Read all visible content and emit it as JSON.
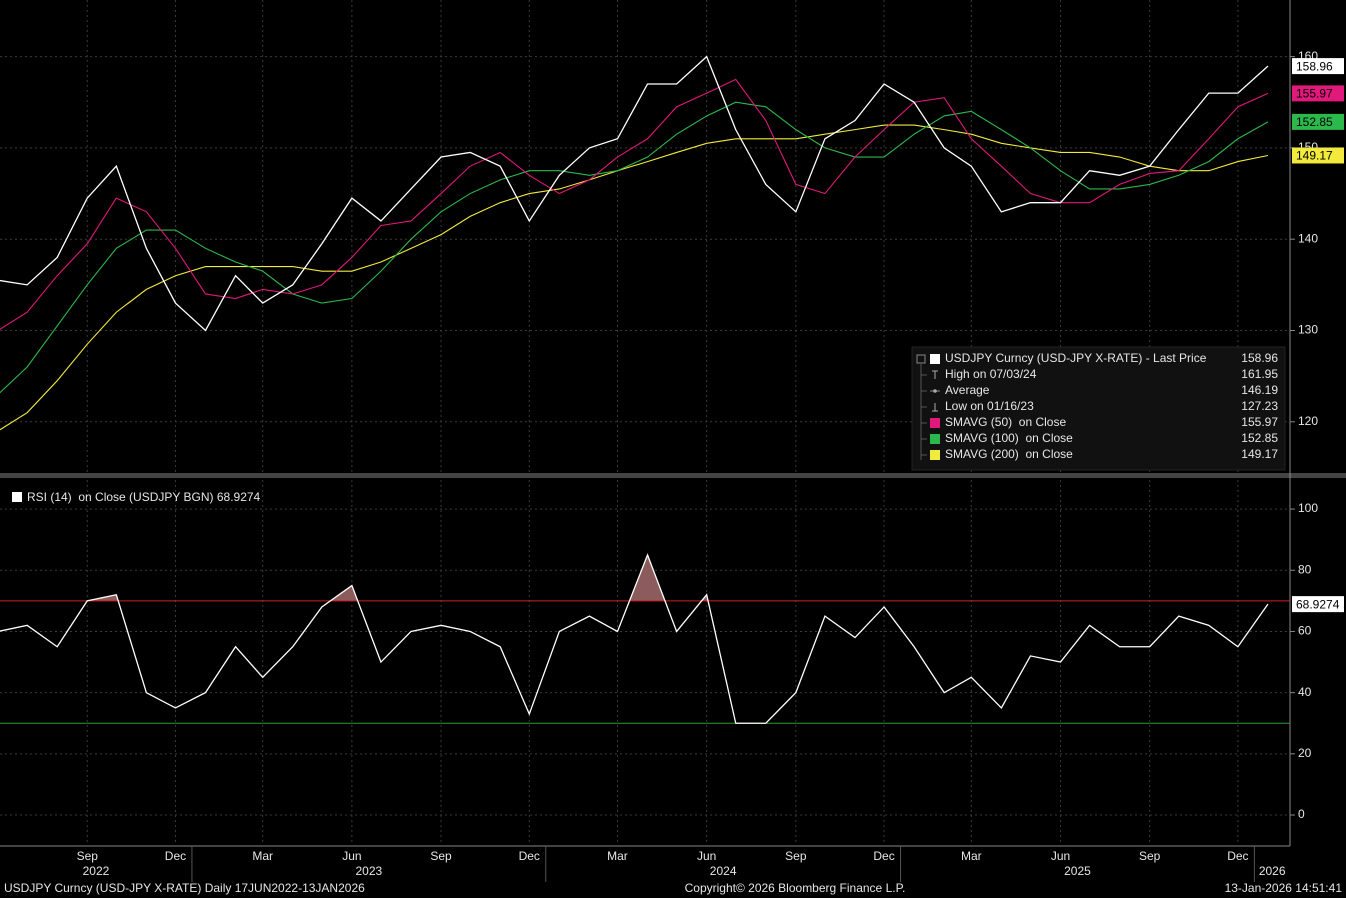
{
  "chart_data": [
    {
      "type": "line",
      "x": [
        "2022-06",
        "2022-07",
        "2022-08",
        "2022-09",
        "2022-10",
        "2022-11",
        "2022-12",
        "2023-01",
        "2023-02",
        "2023-03",
        "2023-04",
        "2023-05",
        "2023-06",
        "2023-07",
        "2023-08",
        "2023-09",
        "2023-10",
        "2023-11",
        "2023-12",
        "2024-01",
        "2024-02",
        "2024-03",
        "2024-04",
        "2024-05",
        "2024-06",
        "2024-07",
        "2024-08",
        "2024-09",
        "2024-10",
        "2024-11",
        "2024-12",
        "2025-01",
        "2025-02",
        "2025-03",
        "2025-04",
        "2025-05",
        "2025-06",
        "2025-07",
        "2025-08",
        "2025-09",
        "2025-10",
        "2025-11",
        "2025-12",
        "2026-01"
      ],
      "series": [
        {
          "name": "USDJPY Curncy (USD-JPY X-RATE) - Last Price",
          "color": "#ffffff",
          "values": [
            135.5,
            135,
            138,
            144.5,
            148,
            139,
            133,
            130,
            136,
            133,
            135,
            139.5,
            144.5,
            142,
            145.5,
            149,
            149.5,
            148,
            142,
            147,
            150,
            151,
            157,
            157,
            160,
            152,
            146,
            143,
            151,
            153,
            157,
            155,
            150,
            148,
            143,
            144,
            144,
            147.5,
            147,
            148,
            152,
            156,
            156,
            158.96
          ]
        },
        {
          "name": "SMAVG (50)  on Close",
          "color": "#e0197a",
          "values": [
            130,
            132,
            136,
            139.5,
            144.5,
            143,
            139,
            134,
            133.5,
            134.5,
            134,
            135,
            138,
            141.5,
            142,
            145,
            148,
            149.5,
            147,
            145,
            146.5,
            149,
            151,
            154.5,
            156,
            157.5,
            153,
            146,
            145,
            149,
            152,
            155,
            155.5,
            151,
            148,
            145,
            144,
            144,
            146,
            147.2,
            147.5,
            151,
            154.5,
            155.97
          ]
        },
        {
          "name": "SMAVG (100)  on Close",
          "color": "#2db84b",
          "values": [
            123,
            126,
            130.5,
            135,
            139,
            141,
            141,
            139,
            137.5,
            136.5,
            134,
            133,
            133.5,
            136.5,
            140,
            143,
            145,
            146.5,
            147.5,
            147.5,
            147,
            147.5,
            149,
            151.5,
            153.5,
            155,
            154.5,
            152,
            150,
            149,
            149,
            151.5,
            153.5,
            154,
            152,
            150,
            147.5,
            145.5,
            145.5,
            146,
            147,
            148.5,
            151,
            152.85
          ]
        },
        {
          "name": "SMAVG (200)  on Close",
          "color": "#f2ea3c",
          "values": [
            119,
            121,
            124.5,
            128.5,
            132,
            134.5,
            136,
            137,
            137,
            137,
            137,
            136.5,
            136.5,
            137.5,
            139,
            140.5,
            142.5,
            144,
            145,
            145.5,
            146.5,
            147.5,
            148.5,
            149.5,
            150.5,
            151,
            151,
            151,
            151.5,
            152,
            152.5,
            152.5,
            152,
            151.5,
            150.5,
            150,
            149.5,
            149.5,
            149,
            148,
            147.5,
            147.5,
            148.5,
            149.17
          ]
        }
      ],
      "stats": [
        {
          "label": "High on 07/03/24",
          "value": 161.95
        },
        {
          "label": "Average",
          "value": 146.19
        },
        {
          "label": "Low on 01/16/23",
          "value": 127.23
        }
      ],
      "ylim": [
        114.5,
        166.2
      ],
      "yticks": [
        120,
        130,
        140,
        150,
        160
      ],
      "grid": true
    },
    {
      "type": "line",
      "x": [
        "2022-06",
        "2022-07",
        "2022-08",
        "2022-09",
        "2022-10",
        "2022-11",
        "2022-12",
        "2023-01",
        "2023-02",
        "2023-03",
        "2023-04",
        "2023-05",
        "2023-06",
        "2023-07",
        "2023-08",
        "2023-09",
        "2023-10",
        "2023-11",
        "2023-12",
        "2024-01",
        "2024-02",
        "2024-03",
        "2024-04",
        "2024-05",
        "2024-06",
        "2024-07",
        "2024-08",
        "2024-09",
        "2024-10",
        "2024-11",
        "2024-12",
        "2025-01",
        "2025-02",
        "2025-03",
        "2025-04",
        "2025-05",
        "2025-06",
        "2025-07",
        "2025-08",
        "2025-09",
        "2025-10",
        "2025-11",
        "2025-12",
        "2026-01"
      ],
      "series": [
        {
          "name": "RSI (14)  on Close (USDJPY BGN)",
          "color": "#ffffff",
          "values": [
            60,
            62,
            55,
            70,
            72,
            40,
            35,
            40,
            55,
            45,
            55,
            68,
            75,
            50,
            60,
            62,
            60,
            55,
            33,
            60,
            65,
            60,
            85,
            60,
            72,
            30,
            30,
            40,
            65,
            58,
            68,
            55,
            40,
            45,
            35,
            52,
            50,
            62,
            55,
            55,
            65,
            62,
            55,
            68.9274
          ]
        }
      ],
      "levels": [
        {
          "value": 70,
          "color": "#d42020",
          "fill": "#8c5c5c"
        },
        {
          "value": 30,
          "color": "#2a9d2a",
          "fill": "#5d8c5d"
        }
      ],
      "ylim": [
        -9.8,
        109.5
      ],
      "yticks": [
        0,
        20,
        40,
        60,
        80,
        100
      ],
      "grid": true,
      "xlim": [
        "2022-06-17",
        "2026-01-13"
      ],
      "xticks": [
        {
          "value": "2022-09",
          "label": "Sep"
        },
        {
          "value": "2022-12",
          "label": "Dec"
        },
        {
          "value": "2023-03",
          "label": "Mar"
        },
        {
          "value": "2023-06",
          "label": "Jun"
        },
        {
          "value": "2023-09",
          "label": "Sep"
        },
        {
          "value": "2023-12",
          "label": "Dec"
        },
        {
          "value": "2024-03",
          "label": "Mar"
        },
        {
          "value": "2024-06",
          "label": "Jun"
        },
        {
          "value": "2024-09",
          "label": "Sep"
        },
        {
          "value": "2024-12",
          "label": "Dec"
        },
        {
          "value": "2025-03",
          "label": "Mar"
        },
        {
          "value": "2025-06",
          "label": "Jun"
        },
        {
          "value": "2025-09",
          "label": "Sep"
        },
        {
          "value": "2025-12",
          "label": "Dec"
        }
      ],
      "year_ticks": [
        2022,
        2023,
        2024,
        2025,
        2026
      ]
    }
  ],
  "footer": {
    "left": "USDJPY Curncy (USD-JPY X-RATE) Daily 17JUN2022-13JAN2026",
    "center": "Copyright© 2026 Bloomberg Finance L.P.",
    "right": "13-Jan-2026 14:51:41"
  }
}
